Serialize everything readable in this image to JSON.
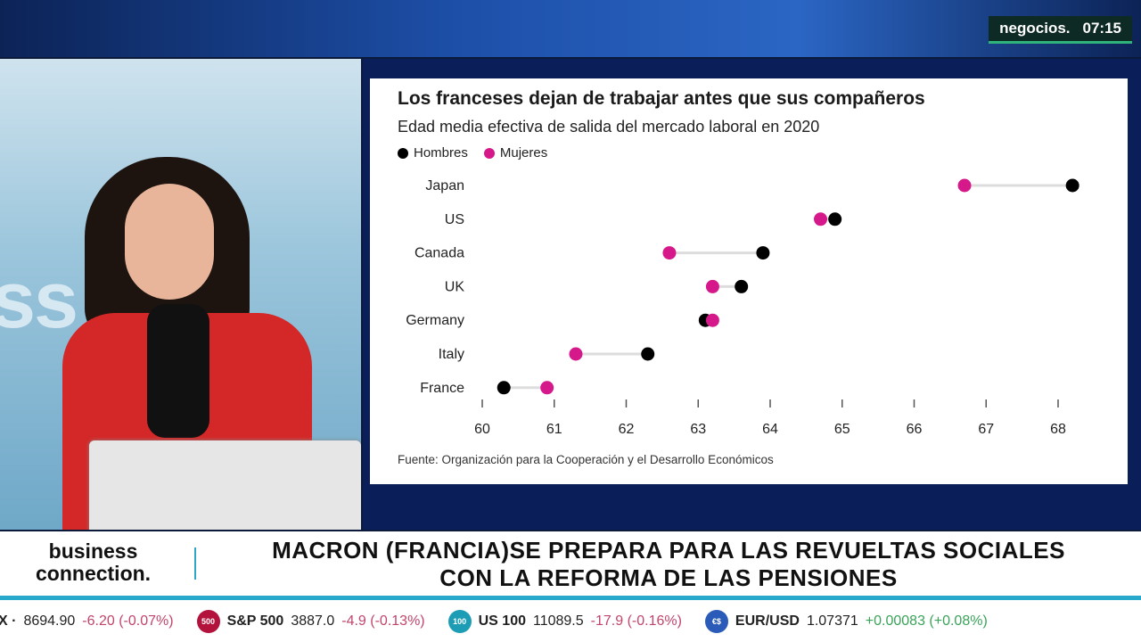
{
  "brand": {
    "channel": "negocios.",
    "time": "07:15"
  },
  "studio": {
    "wall_text": "ss onn"
  },
  "chart_data": {
    "type": "dot-plot",
    "title": "Los franceses dejan de trabajar antes que sus compañeros",
    "subtitle": "Edad media efectiva de salida del mercado laboral en 2020",
    "source": "Fuente: Organización para la Cooperación y el Desarrollo Económicos",
    "categories": [
      "Japan",
      "US",
      "Canada",
      "UK",
      "Germany",
      "Italy",
      "France"
    ],
    "series": [
      {
        "name": "Hombres",
        "color": "#000000",
        "values": [
          68.2,
          64.9,
          63.9,
          63.6,
          63.1,
          62.3,
          60.3
        ]
      },
      {
        "name": "Mujeres",
        "color": "#d6198a",
        "values": [
          66.7,
          64.7,
          62.6,
          63.2,
          63.2,
          61.3,
          60.9
        ]
      }
    ],
    "xlim": [
      60,
      68
    ],
    "xticks": [
      "60",
      "61",
      "62",
      "63",
      "64",
      "65",
      "66",
      "67",
      "68"
    ],
    "legend_position": "top-left"
  },
  "lower_third": {
    "show_line1": "business",
    "show_line2": "connection.",
    "headline_line1": "MACRON (FRANCIA)SE PREPARA PARA LAS REVUELTAS SOCIALES",
    "headline_line2": "CON LA REFORMA DE LAS PENSIONES"
  },
  "ticker": [
    {
      "badge": "",
      "name": "X ·",
      "value": "8694.90",
      "change": "-6.20 (-0.07%)",
      "trend": "neg",
      "color": "#ffffff"
    },
    {
      "badge": "500",
      "name": "S&P 500",
      "value": "3887.0",
      "change": "-4.9 (-0.13%)",
      "trend": "neg",
      "color": "#b3123d"
    },
    {
      "badge": "100",
      "name": "US 100",
      "value": "11089.5",
      "change": "-17.9 (-0.16%)",
      "trend": "neg",
      "color": "#1c9db5"
    },
    {
      "badge": "€$",
      "name": "EUR/USD",
      "value": "1.07371",
      "change": "+0.00083 (+0.08%)",
      "trend": "pos",
      "color": "#2a5bb8"
    }
  ]
}
